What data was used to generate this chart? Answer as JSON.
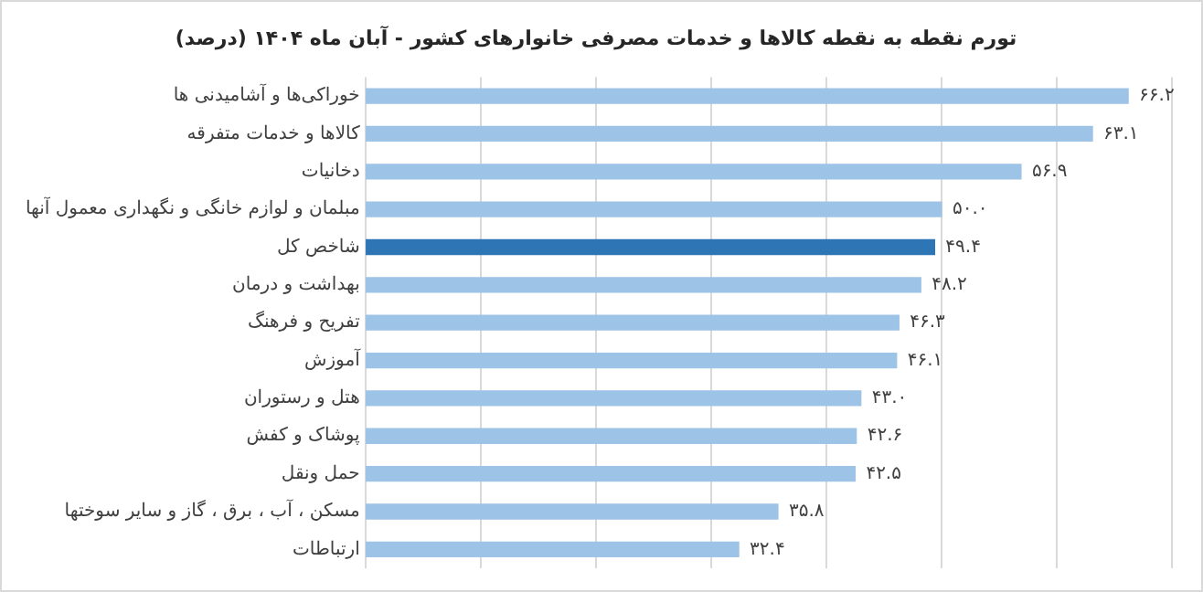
{
  "chart_data": {
    "type": "bar",
    "orientation": "horizontal",
    "title": "تورم نقطه به نقطه کالاها و خدمات مصرفی خانوارهای کشور - آبان ماه ۱۴۰۴ (درصد)",
    "categories": [
      "خوراکی‌ها و آشامیدنی ها",
      "کالاها و خدمات متفرقه",
      "دخانیات",
      "مبلمان و لوازم خانگی و نگهداری معمول آنها",
      "شاخص کل",
      "بهداشت و درمان",
      "تفریح و فرهنگ",
      "آموزش",
      "هتل و رستوران",
      "پوشاک و کفش",
      "حمل ونقل",
      "مسکن ، آب ، برق ، گاز و سایر سوختها",
      "ارتباطات"
    ],
    "values": [
      66.2,
      63.1,
      56.9,
      50.0,
      49.4,
      48.2,
      46.3,
      46.1,
      43.0,
      42.6,
      42.5,
      35.8,
      32.4
    ],
    "value_labels": [
      "۶۶.۲",
      "۶۳.۱",
      "۵۶.۹",
      "۵۰.۰",
      "۴۹.۴",
      "۴۸.۲",
      "۴۶.۳",
      "۴۶.۱",
      "۴۳.۰",
      "۴۲.۶",
      "۴۲.۵",
      "۳۵.۸",
      "۳۲.۴"
    ],
    "colors": [
      "#9dc3e6",
      "#9dc3e6",
      "#9dc3e6",
      "#9dc3e6",
      "#2e75b6",
      "#9dc3e6",
      "#9dc3e6",
      "#9dc3e6",
      "#9dc3e6",
      "#9dc3e6",
      "#9dc3e6",
      "#9dc3e6",
      "#9dc3e6"
    ],
    "xlim": [
      0,
      70
    ],
    "xticks": [
      {
        "value": 0,
        "label": null
      },
      {
        "value": 10,
        "label": null
      },
      {
        "value": 20,
        "label": null
      },
      {
        "value": 30,
        "label": null
      },
      {
        "value": 40,
        "label": null
      },
      {
        "value": 50,
        "label": null
      },
      {
        "value": 60,
        "label": null
      },
      {
        "value": 70,
        "label": null
      }
    ],
    "grid": "x",
    "tick_labels": "y",
    "legend": false
  }
}
